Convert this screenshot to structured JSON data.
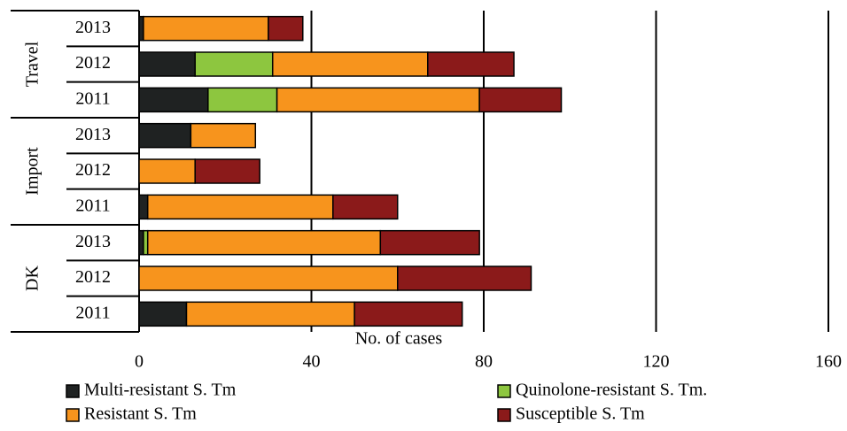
{
  "chart_data": {
    "type": "stacked-barh",
    "x_label": "No. of cases",
    "groups": [
      "Travel",
      "Import",
      "DK"
    ],
    "categories": [
      "2013",
      "2012",
      "2011",
      "2013",
      "2012",
      "2011",
      "2013",
      "2012",
      "2011"
    ],
    "series": [
      {
        "name": "Multi-resistant S. Tm",
        "color": "#1f2222",
        "values": [
          1,
          13,
          16,
          12,
          0,
          2,
          1,
          0,
          11
        ]
      },
      {
        "name": "Quinolone-resistant S. Tm.",
        "color": "#8dc63f",
        "values": [
          0,
          18,
          16,
          0,
          0,
          0,
          1,
          0,
          0
        ]
      },
      {
        "name": "Resistant S. Tm",
        "color": "#f7941d",
        "values": [
          29,
          36,
          47,
          15,
          13,
          43,
          54,
          60,
          39
        ]
      },
      {
        "name": "Susceptible S. Tm",
        "color": "#8b1a1a",
        "values": [
          8,
          20,
          19,
          0,
          15,
          15,
          23,
          31,
          25
        ]
      }
    ],
    "xlim": [
      0,
      160
    ],
    "xticks": [
      0,
      40,
      80,
      120,
      160
    ],
    "grid": true
  }
}
